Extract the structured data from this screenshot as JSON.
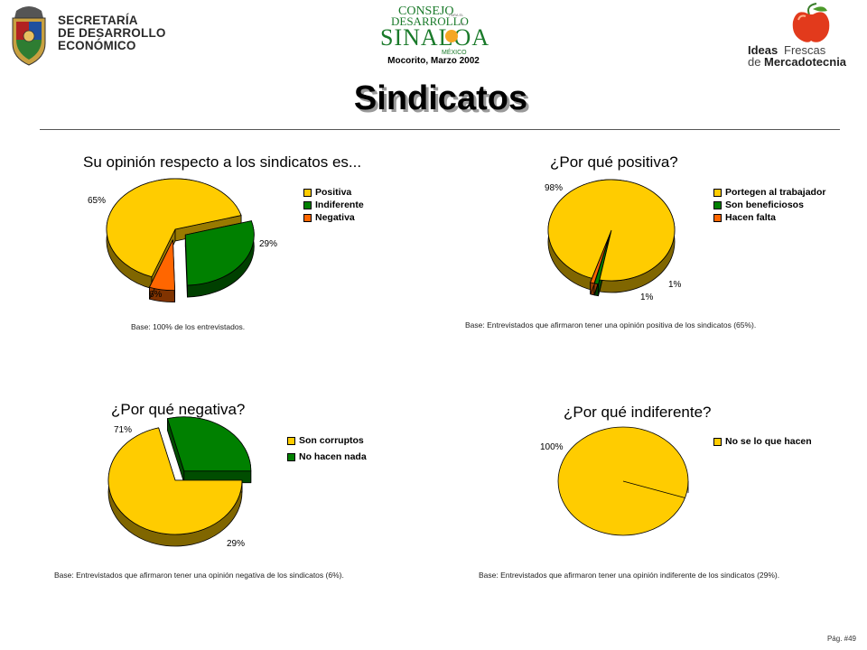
{
  "header": {
    "left_logo_text": [
      "SECRETARÍA",
      "DE DESARROLLO",
      "ECONÓMICO"
    ],
    "center_logo_line1": "CONSEJO",
    "center_logo_line2": "DESARROLLO",
    "center_logo_small1": "PARA EL",
    "center_logo_small2": "DE",
    "center_logo_line3": "SINALOA",
    "center_logo_line4": "MÉXICO",
    "center_date": "Mocorito, Marzo 2002",
    "right_logo_ideas": "Ideas",
    "right_logo_frescas": "Frescas",
    "right_logo_de": "de",
    "right_logo_merc": "Mercadotecnia"
  },
  "page_title": "Sindicatos",
  "page_number": "Pág. #49",
  "colors": {
    "yellow": "#ffcc00",
    "green": "#008000",
    "orange": "#ff6600",
    "edge_yellow": "#7a6200",
    "edge_green": "#004000",
    "edge_orange": "#803300"
  },
  "charts": [
    {
      "title": "Su opinión respecto a los sindicatos es...",
      "base": "Base:  100% de los entrevistados.",
      "legend": [
        "Positiva",
        "Indiferente",
        "Negativa"
      ],
      "labels": [
        "65%",
        "29%",
        "6%"
      ]
    },
    {
      "title": "¿Por qué positiva?",
      "base": "Base:  Entrevistados que afirmaron tener una opinión positiva de los sindicatos (65%).",
      "legend": [
        "Portegen al trabajador",
        "Son beneficiosos",
        "Hacen falta"
      ],
      "labels": [
        "98%",
        "1%",
        "1%"
      ]
    },
    {
      "title": "¿Por qué negativa?",
      "base": "Base:  Entrevistados que afirmaron tener una opinión negativa de los sindicatos (6%).",
      "legend": [
        "Son corruptos",
        "No hacen nada"
      ],
      "labels": [
        "71%",
        "29%"
      ]
    },
    {
      "title": "¿Por qué indiferente?",
      "base": "Base:  Entrevistados que afirmaron tener una opinión indiferente de los sindicatos (29%).",
      "legend": [
        "No se lo que hacen"
      ],
      "labels": [
        "100%"
      ]
    }
  ],
  "chart_data": [
    {
      "type": "pie",
      "title": "Su opinión respecto a los sindicatos es...",
      "categories": [
        "Positiva",
        "Indiferente",
        "Negativa"
      ],
      "values": [
        65,
        29,
        6
      ],
      "colors": [
        "#ffcc00",
        "#008000",
        "#ff6600"
      ],
      "legend": "right"
    },
    {
      "type": "pie",
      "title": "¿Por qué positiva?",
      "categories": [
        "Portegen al trabajador",
        "Son beneficiosos",
        "Hacen falta"
      ],
      "values": [
        98,
        1,
        1
      ],
      "colors": [
        "#ffcc00",
        "#008000",
        "#ff6600"
      ],
      "legend": "right"
    },
    {
      "type": "pie",
      "title": "¿Por qué negativa?",
      "categories": [
        "Son corruptos",
        "No hacen nada"
      ],
      "values": [
        71,
        29
      ],
      "colors": [
        "#ffcc00",
        "#008000"
      ],
      "legend": "right"
    },
    {
      "type": "pie",
      "title": "¿Por qué indiferente?",
      "categories": [
        "No se lo que hacen"
      ],
      "values": [
        100
      ],
      "colors": [
        "#ffcc00"
      ],
      "legend": "right"
    }
  ]
}
